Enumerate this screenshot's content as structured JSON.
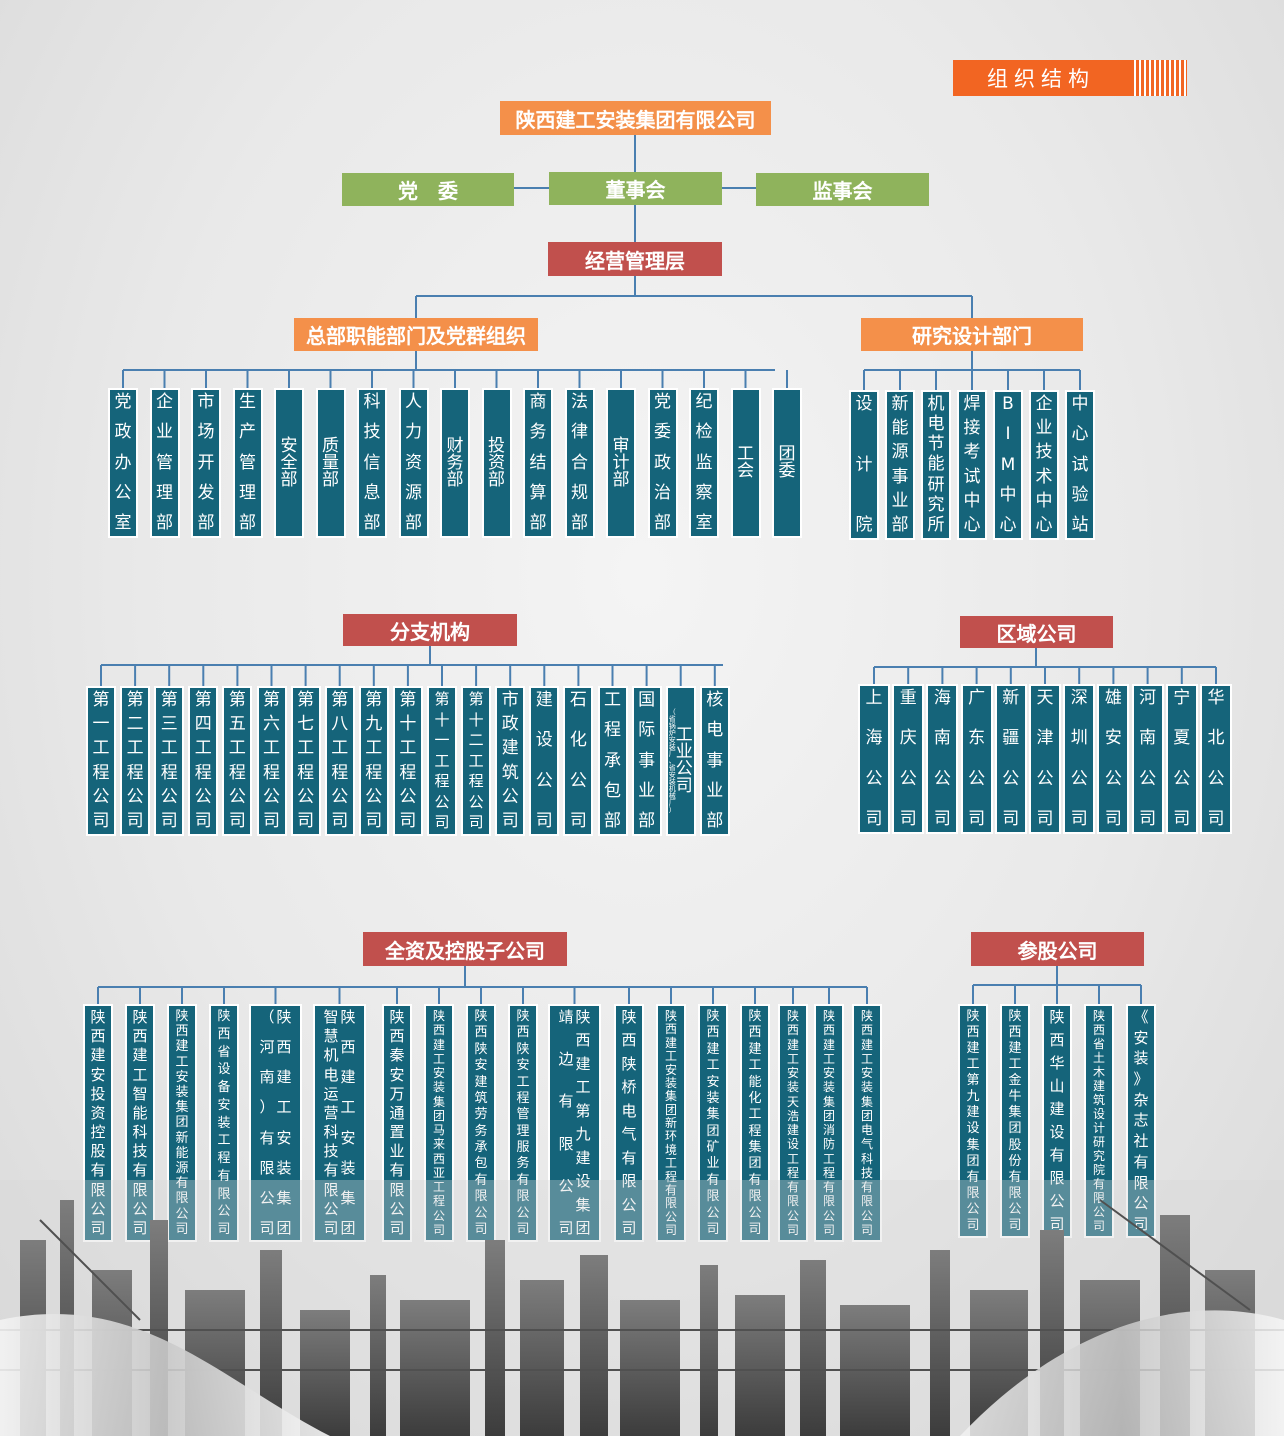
{
  "header": {
    "badge": "组织结构"
  },
  "root": {
    "label": "陕西建工安装集团有限公司"
  },
  "governance": {
    "party": "党　委",
    "board": "董事会",
    "supervisors": "监事会"
  },
  "management": {
    "label": "经营管理层"
  },
  "hq": {
    "title": "总部职能部门及党群组织",
    "items": [
      "党政办公室",
      "企业管理部",
      "市场开发部",
      "生产管理部",
      "安全部",
      "质量部",
      "科技信息部",
      "人力资源部",
      "财务部",
      "投资部",
      "商务结算部",
      "法律合规部",
      "审计部",
      "党委政治部",
      "纪检监察室",
      "工会",
      "团委"
    ]
  },
  "research": {
    "title": "研究设计部门",
    "items": [
      "设计院",
      "新能源事业部",
      "机电节能研究所",
      "焊接考试中心",
      "BIM中心",
      "企业技术中心",
      "中心试验站"
    ]
  },
  "branches": {
    "title": "分支机构",
    "items": [
      "第一工程公司",
      "第二工程公司",
      "第三工程公司",
      "第四工程公司",
      "第五工程公司",
      "第六工程公司",
      "第七工程公司",
      "第八工程公司",
      "第九工程公司",
      "第十工程公司",
      "第十一工程公司",
      "第十二工程公司",
      "市政建筑公司",
      "建设公司",
      "石化公司",
      "工程承包部",
      "国际事业部",
      "工业公司",
      "核电事业部"
    ],
    "industry_note": "（省锅炉安装厂、省安装机械厂）"
  },
  "regional": {
    "title": "区域公司",
    "items": [
      "上海公司",
      "重庆公司",
      "海南公司",
      "广东公司",
      "新疆公司",
      "天津公司",
      "深圳公司",
      "雄安公司",
      "河南公司",
      "宁夏公司",
      "华北公司"
    ]
  },
  "subsidiaries": {
    "title": "全资及控股子公司",
    "items": [
      {
        "cols": [
          "陕西建安投资控股有限公司"
        ]
      },
      {
        "cols": [
          "陕西建工智能科技有限公司"
        ]
      },
      {
        "cols": [
          "陕西建工安装集团新能源有限公司"
        ]
      },
      {
        "cols": [
          "陕西省设备安装工程有限公司"
        ]
      },
      {
        "cols": [
          "陕西建工安装集团",
          "（河南）有限公司"
        ]
      },
      {
        "cols": [
          "陕西建工安装集团",
          "智慧机电运营科技有限公司"
        ]
      },
      {
        "cols": [
          "陕西秦安万通置业有限公司"
        ]
      },
      {
        "cols": [
          "陕西建工安装集团马来西亚工程公司"
        ]
      },
      {
        "cols": [
          "陕西陕安建筑劳务承包有限公司"
        ]
      },
      {
        "cols": [
          "陕西陕安工程管理服务有限公司"
        ]
      },
      {
        "cols": [
          "陕西建工第九建设集团",
          "靖边有限公司"
        ]
      },
      {
        "cols": [
          "陕西陕桥电气有限公司"
        ]
      },
      {
        "cols": [
          "陕西建工安装集团新环境工程有限公司"
        ]
      },
      {
        "cols": [
          "陕西建工安装集团矿业有限公司"
        ]
      },
      {
        "cols": [
          "陕西建工能化工程集团有限公司"
        ]
      },
      {
        "cols": [
          "陕西建工安装天浩建设工程有限公司"
        ]
      },
      {
        "cols": [
          "陕西建工安装集团消防工程有限公司"
        ]
      },
      {
        "cols": [
          "陕西建工安装集团电气科技有限公司"
        ]
      }
    ]
  },
  "equity": {
    "title": "参股公司",
    "items": [
      "陕西建工第九建设集团有限公司",
      "陕西建工金牛集团股份有限公司",
      "陕西华山建设有限公司",
      "陕西省土木建筑设计研究院有限公司",
      "《安装》杂志社有限公司"
    ]
  },
  "colors": {
    "orange": "#f4904a",
    "green": "#8fb35c",
    "red": "#c1504d",
    "teal": "#15647a",
    "line": "#4a7fb0",
    "badge": "#f26522"
  }
}
